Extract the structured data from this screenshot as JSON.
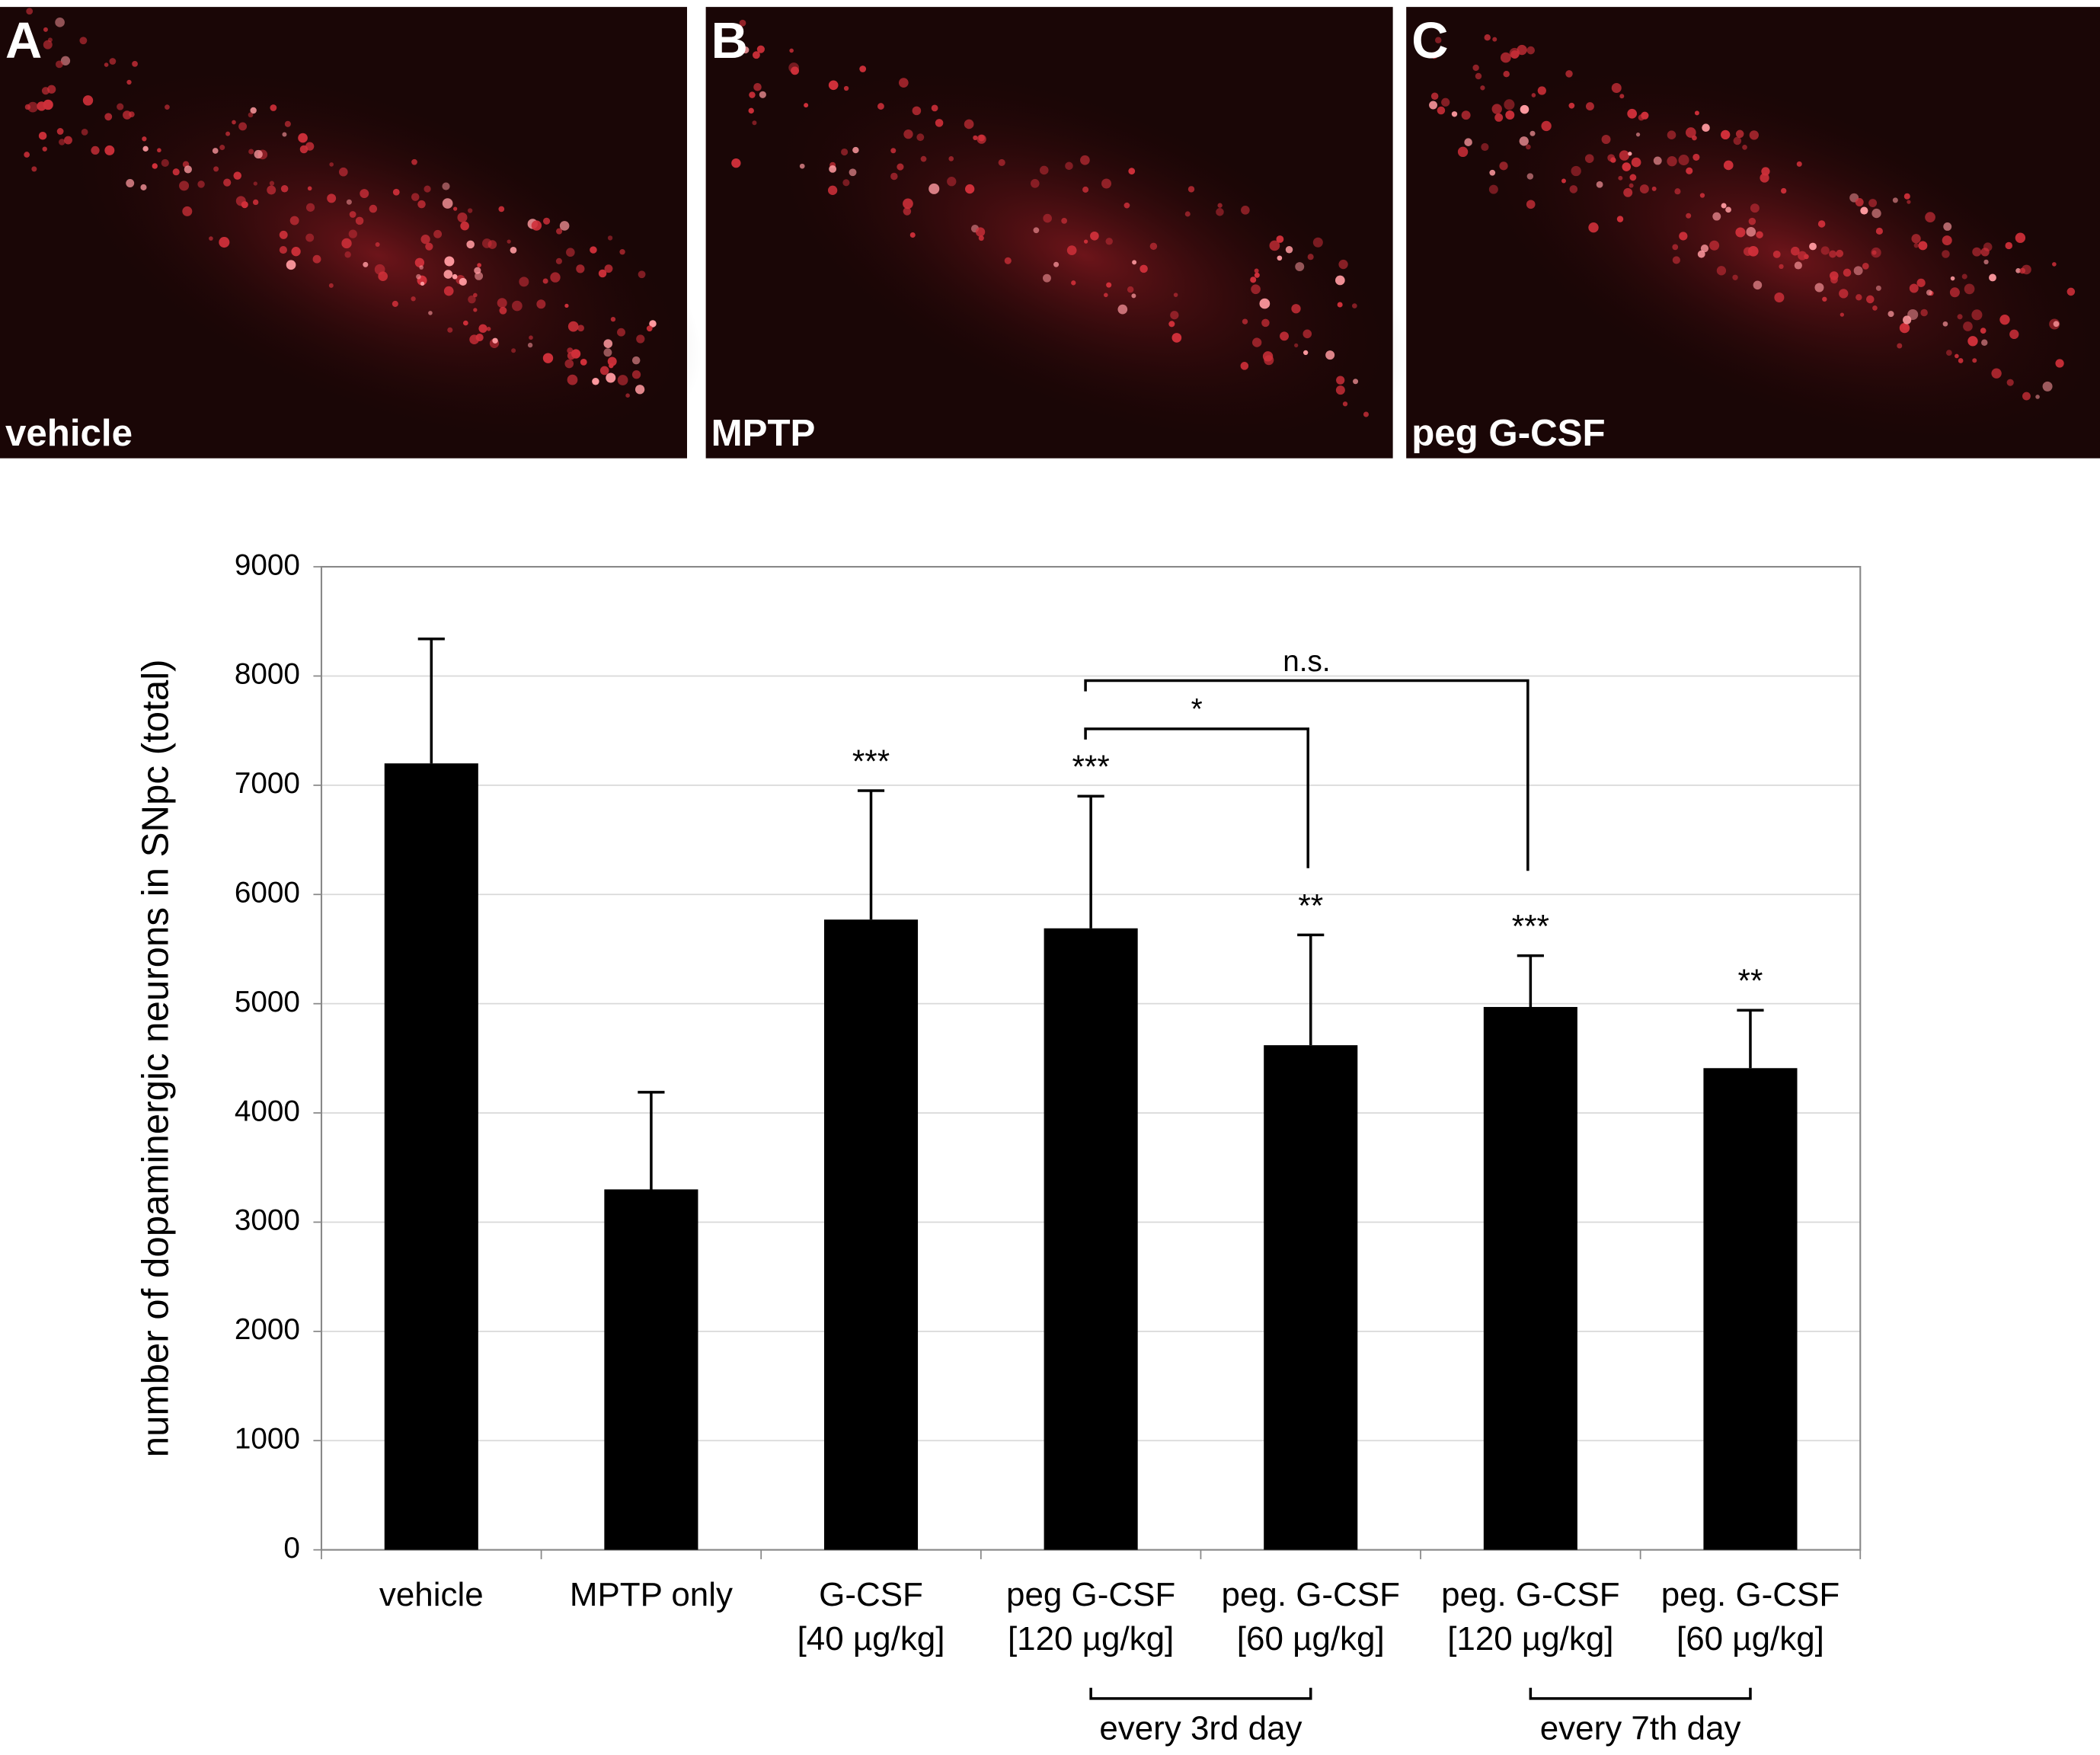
{
  "panels": [
    {
      "letter": "A",
      "caption": "vehicle"
    },
    {
      "letter": "B",
      "caption": "MPTP"
    },
    {
      "letter": "C",
      "caption": "peg G-CSF"
    }
  ],
  "chart_data": {
    "type": "bar",
    "ylabel": "number of dopaminergic neurons in SNpc (total)",
    "categories": [
      [
        "vehicle"
      ],
      [
        "MPTP only"
      ],
      [
        "G-CSF",
        "[40 µg/kg]"
      ],
      [
        "peg G-CSF",
        "[120 µg/kg]"
      ],
      [
        "peg. G-CSF",
        "[60 µg/kg]"
      ],
      [
        "peg. G-CSF",
        "[120 µg/kg]"
      ],
      [
        "peg. G-CSF",
        "[60 µg/kg]"
      ]
    ],
    "values": [
      7200,
      3300,
      5770,
      5690,
      4620,
      4970,
      4410
    ],
    "errors": [
      1140,
      890,
      1180,
      1210,
      1010,
      470,
      530
    ],
    "sig_labels": [
      null,
      null,
      "***",
      "***",
      "**",
      "***",
      "**"
    ],
    "comparisons": [
      "n.s.",
      "*"
    ],
    "groups": [
      "every 3rd day",
      "every 7th day"
    ],
    "color": "#000000",
    "ylim": [
      0,
      9000
    ],
    "yticks": [
      0,
      1000,
      2000,
      3000,
      4000,
      5000,
      6000,
      7000,
      8000,
      9000
    ],
    "grid": true
  }
}
